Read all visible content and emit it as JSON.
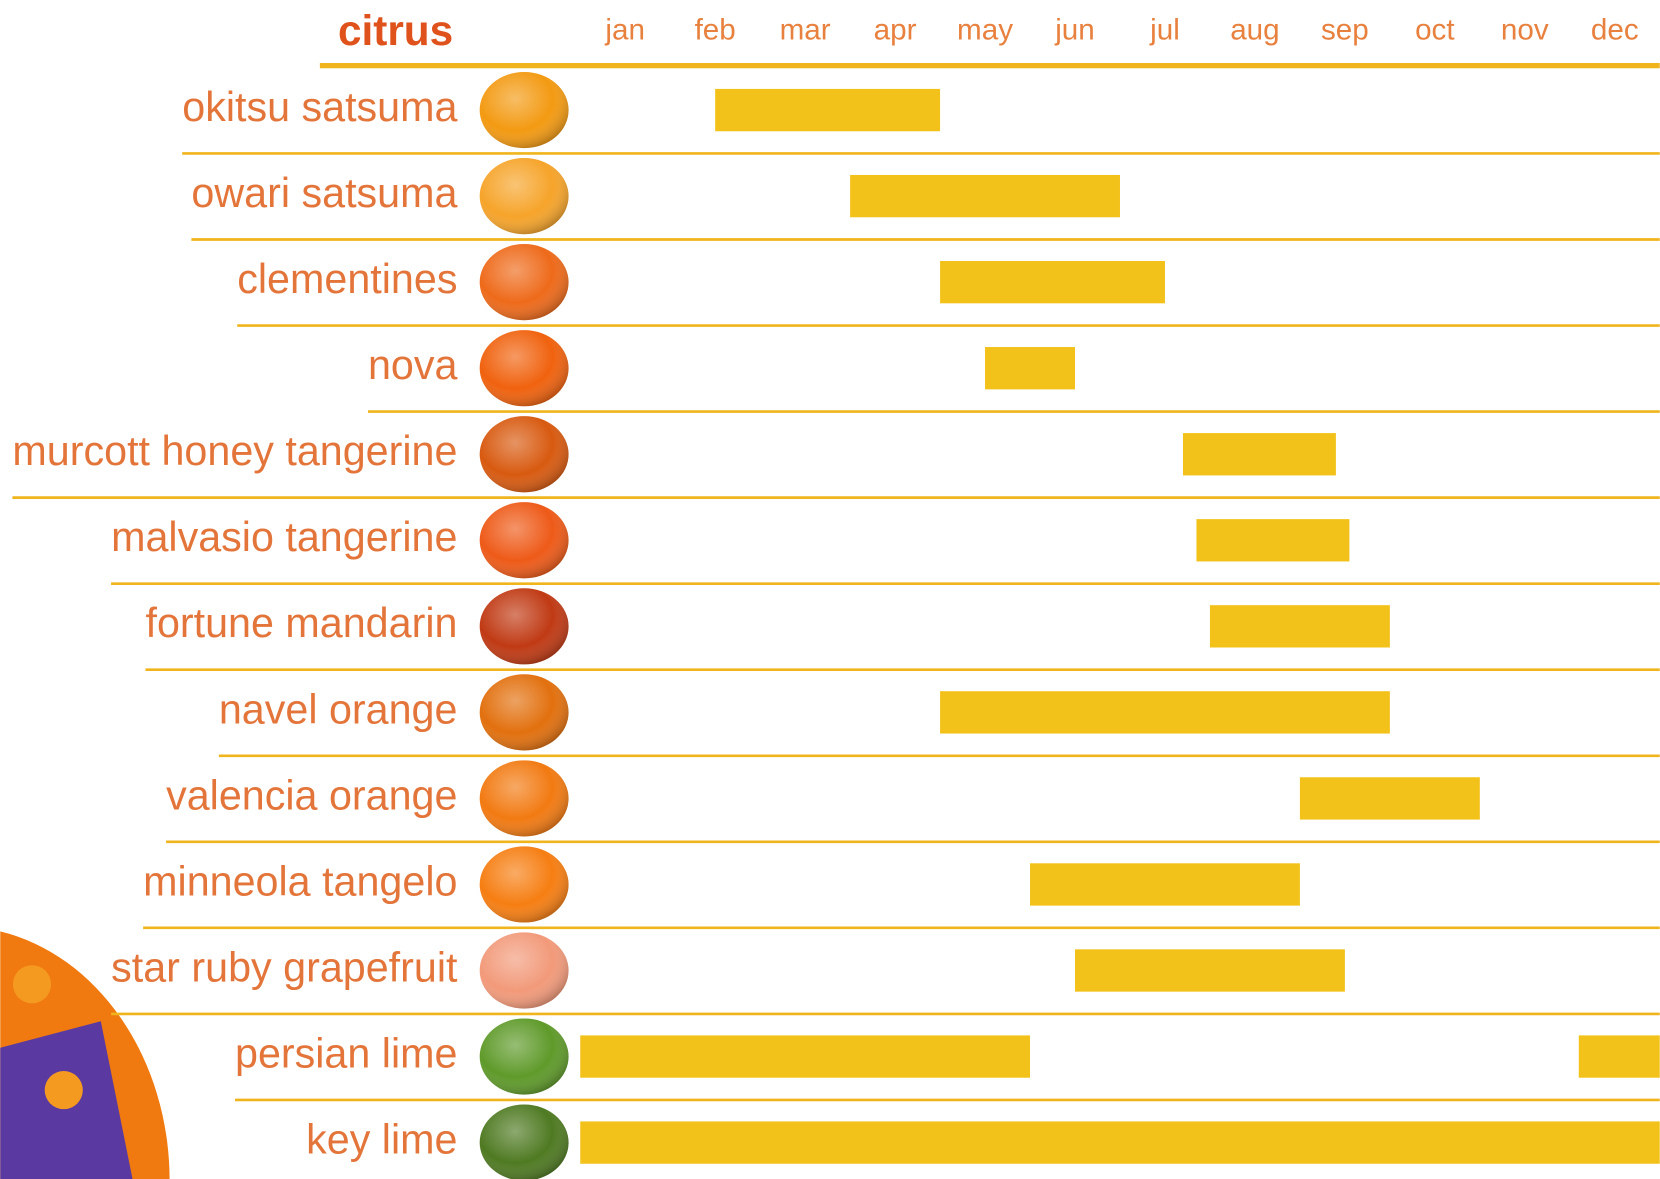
{
  "chart_data": {
    "type": "timeline",
    "title": "citrus",
    "categories": [
      "jan",
      "feb",
      "mar",
      "apr",
      "may",
      "jun",
      "jul",
      "aug",
      "sep",
      "oct",
      "nov",
      "dec"
    ],
    "xlim": [
      0,
      12
    ],
    "color": "#f3c21a",
    "rows": [
      {
        "name": "okitsu satsuma",
        "ranges": [
          [
            1.5,
            4
          ]
        ]
      },
      {
        "name": "owari satsuma",
        "ranges": [
          [
            3,
            6
          ]
        ]
      },
      {
        "name": "clementines",
        "ranges": [
          [
            4,
            6.5
          ]
        ]
      },
      {
        "name": "nova",
        "ranges": [
          [
            4.5,
            5.5
          ]
        ]
      },
      {
        "name": "murcott honey tangerine",
        "ranges": [
          [
            6.7,
            8.4
          ]
        ]
      },
      {
        "name": "malvasio tangerine",
        "ranges": [
          [
            6.85,
            8.55
          ]
        ]
      },
      {
        "name": "fortune mandarin",
        "ranges": [
          [
            7,
            9
          ]
        ]
      },
      {
        "name": "navel orange",
        "ranges": [
          [
            4,
            9
          ]
        ]
      },
      {
        "name": "valencia orange",
        "ranges": [
          [
            8,
            10
          ]
        ]
      },
      {
        "name": "minneola tangelo",
        "ranges": [
          [
            5,
            8
          ]
        ]
      },
      {
        "name": "star ruby grapefruit",
        "ranges": [
          [
            5.5,
            8.5
          ]
        ]
      },
      {
        "name": "persian lime",
        "ranges": [
          [
            0,
            5
          ],
          [
            11.1,
            12
          ]
        ]
      },
      {
        "name": "key lime",
        "ranges": [
          [
            0,
            12
          ]
        ]
      }
    ]
  }
}
